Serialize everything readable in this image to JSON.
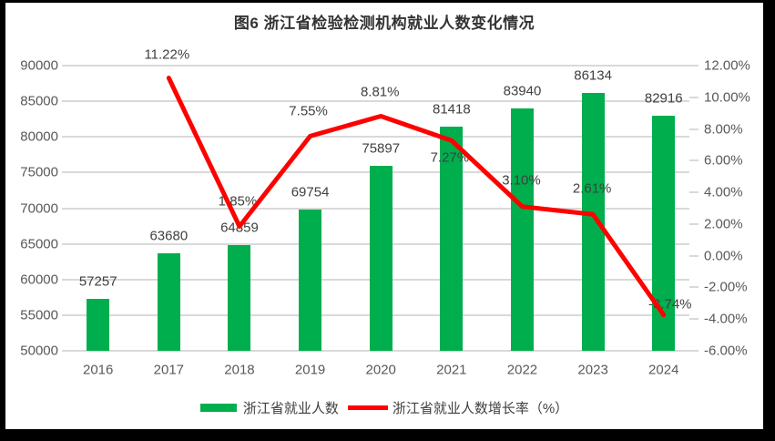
{
  "title": "图6  浙江省检验检测机构就业人数变化情况",
  "chart_data": {
    "type": "bar",
    "subtype": "combo-bar-line-dual-axis",
    "title": "图6  浙江省检验检测机构就业人数变化情况",
    "categories": [
      "2016",
      "2017",
      "2018",
      "2019",
      "2020",
      "2021",
      "2022",
      "2023",
      "2024"
    ],
    "series": [
      {
        "name": "浙江省就业人数",
        "chart_type": "bar",
        "axis": "left",
        "color": "#00AE4D",
        "values": [
          57257,
          63680,
          64859,
          69754,
          75897,
          81418,
          83940,
          86134,
          82916
        ],
        "data_labels": [
          "57257",
          "63680",
          "64859",
          "69754",
          "75897",
          "81418",
          "83940",
          "86134",
          "82916"
        ]
      },
      {
        "name": "浙江省就业人数增长率（%）",
        "chart_type": "line",
        "axis": "right",
        "color": "#FF0000",
        "values": [
          null,
          11.22,
          1.85,
          7.55,
          8.81,
          7.27,
          3.1,
          2.61,
          -3.74
        ],
        "data_labels": [
          null,
          "11.22%",
          "1.85%",
          "7.55%",
          "8.81%",
          "7.27%",
          "3.10%",
          "2.61%",
          "-3.74%"
        ]
      }
    ],
    "left_axis": {
      "min": 50000,
      "max": 90000,
      "step": 5000,
      "tick_labels": [
        "90000",
        "85000",
        "80000",
        "75000",
        "70000",
        "65000",
        "60000",
        "55000",
        "50000"
      ]
    },
    "right_axis": {
      "min": -6,
      "max": 12,
      "step": 2,
      "tick_labels": [
        "12.00%",
        "10.00%",
        "8.00%",
        "6.00%",
        "4.00%",
        "2.00%",
        "0.00%",
        "-2.00%",
        "-4.00%",
        "-6.00%"
      ]
    },
    "xlabel": "",
    "ylabel": "",
    "grid": true,
    "legend_position": "bottom"
  },
  "colors": {
    "bar": "#00AE4D",
    "line": "#FF0000",
    "grid": "#D9D9D9",
    "axis_text": "#595959",
    "label_text": "#404040",
    "title_text": "#333333",
    "frame": "#000000",
    "page": "#FFFFFF"
  }
}
